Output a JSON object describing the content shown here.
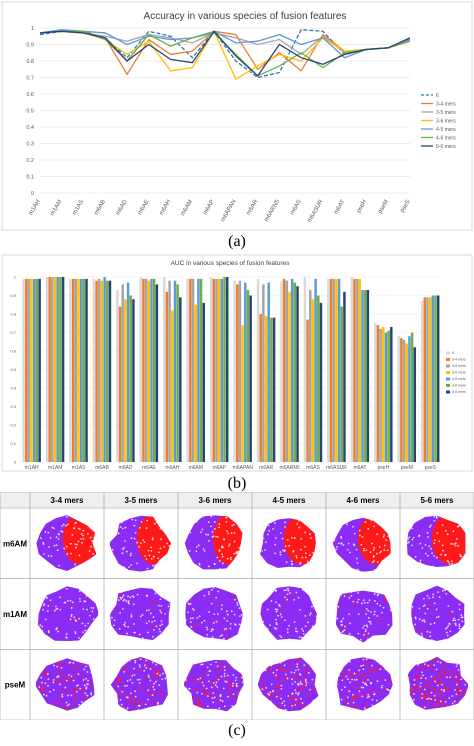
{
  "captions": {
    "a": "(a)",
    "b": "(b)",
    "c": "(c)"
  },
  "chart_data": [
    {
      "type": "line",
      "title": "Accuracy in various species of fusion features",
      "categories": [
        "m1AH",
        "m1AM",
        "m1AS",
        "m6AB",
        "m6AD",
        "m6AE",
        "m6AH",
        "m6AM",
        "m6AP",
        "m6APAN",
        "m6AR",
        "m6ARN5",
        "m6AS",
        "m6ASUR",
        "m6AT",
        "pseH",
        "pseM",
        "pseS"
      ],
      "y_ticks": [
        "1",
        "0.9",
        "0.8",
        "0.7",
        "0.6",
        "0.5",
        "0.4",
        "0.3",
        "0.2",
        "0.1",
        "0"
      ],
      "ylim": [
        0,
        1
      ],
      "legend_position": "right",
      "series": [
        {
          "name": "6",
          "color": "#2e75b6",
          "dash": true,
          "values": [
            0.96,
            0.98,
            0.98,
            0.94,
            0.82,
            0.98,
            0.95,
            0.82,
            0.98,
            0.8,
            0.7,
            0.73,
            0.99,
            0.98,
            0.84,
            0.87,
            0.88,
            0.93
          ]
        },
        {
          "name": "3-4 mers",
          "color": "#ed7d31",
          "values": [
            0.97,
            0.98,
            0.97,
            0.94,
            0.72,
            0.93,
            0.84,
            0.86,
            0.98,
            0.96,
            0.75,
            0.85,
            0.74,
            0.96,
            0.86,
            0.87,
            0.88,
            0.92
          ]
        },
        {
          "name": "3-5 mers",
          "color": "#a5a5a5",
          "values": [
            0.97,
            0.98,
            0.97,
            0.95,
            0.92,
            0.96,
            0.94,
            0.91,
            0.97,
            0.94,
            0.9,
            0.93,
            0.84,
            0.95,
            0.85,
            0.87,
            0.88,
            0.93
          ]
        },
        {
          "name": "3-6 mers",
          "color": "#ffc000",
          "values": [
            0.97,
            0.98,
            0.97,
            0.93,
            0.84,
            0.92,
            0.74,
            0.76,
            0.98,
            0.69,
            0.77,
            0.84,
            0.8,
            0.94,
            0.86,
            0.87,
            0.88,
            0.93
          ]
        },
        {
          "name": "4-5 mers",
          "color": "#5b9bd5",
          "values": [
            0.97,
            0.99,
            0.98,
            0.97,
            0.9,
            0.95,
            0.93,
            0.94,
            0.98,
            0.91,
            0.92,
            0.96,
            0.9,
            0.94,
            0.82,
            0.87,
            0.88,
            0.93
          ]
        },
        {
          "name": "4-6 mers",
          "color": "#70ad47",
          "values": [
            0.97,
            0.98,
            0.98,
            0.93,
            0.8,
            0.96,
            0.89,
            0.94,
            0.97,
            0.84,
            0.71,
            0.77,
            0.85,
            0.76,
            0.85,
            0.87,
            0.88,
            0.92
          ]
        },
        {
          "name": "5-6 mers",
          "color": "#264478",
          "values": [
            0.97,
            0.98,
            0.97,
            0.94,
            0.8,
            0.9,
            0.81,
            0.79,
            0.98,
            0.83,
            0.71,
            0.9,
            0.82,
            0.78,
            0.84,
            0.87,
            0.88,
            0.94
          ]
        }
      ]
    },
    {
      "type": "bar",
      "title": "AUC in various species of fusion features",
      "categories": [
        "m1AH",
        "m1AM",
        "m1AS",
        "m6AB",
        "m6AD",
        "m6AE",
        "m6AH",
        "m6AM",
        "m6AP",
        "m6APAN",
        "m6AR",
        "m6ARN5",
        "m6AS",
        "m6ASUR",
        "m6AT",
        "pseH",
        "pseM",
        "pseS"
      ],
      "y_ticks": [
        "1",
        "0.9",
        "0.8",
        "0.7",
        "0.6",
        "0.5",
        "0.4",
        "0.3",
        "0.2",
        "0.1",
        "0"
      ],
      "ylim": [
        0,
        1
      ],
      "legend_position": "right",
      "series": [
        {
          "name": "6",
          "color": "#d9d9d9",
          "values": [
            0.99,
            1.0,
            0.99,
            0.99,
            0.93,
            1.0,
            1.0,
            0.99,
            1.0,
            0.98,
            0.99,
            0.98,
            1.0,
            0.99,
            1.0,
            0.75,
            0.68,
            0.87
          ]
        },
        {
          "name": "3-4 mers",
          "color": "#ed7d31",
          "values": [
            0.99,
            1.0,
            0.99,
            0.98,
            0.84,
            0.99,
            0.92,
            0.99,
            0.99,
            0.96,
            0.8,
            0.99,
            0.77,
            0.99,
            0.99,
            0.74,
            0.67,
            0.89
          ]
        },
        {
          "name": "3-5 mers",
          "color": "#a5a5a5",
          "values": [
            0.99,
            1.0,
            0.99,
            0.99,
            0.96,
            0.99,
            0.98,
            0.99,
            0.99,
            0.98,
            0.96,
            0.98,
            0.93,
            0.99,
            0.99,
            0.72,
            0.66,
            0.89
          ]
        },
        {
          "name": "3-6 mers",
          "color": "#ffc000",
          "values": [
            0.99,
            1.0,
            0.99,
            0.98,
            0.88,
            0.98,
            0.82,
            0.85,
            0.99,
            0.74,
            0.79,
            0.92,
            0.88,
            0.99,
            0.99,
            0.73,
            0.64,
            0.89
          ]
        },
        {
          "name": "4-5 mers",
          "color": "#5b9bd5",
          "values": [
            0.99,
            1.0,
            0.99,
            1.0,
            0.97,
            0.99,
            0.98,
            0.99,
            0.99,
            0.97,
            0.97,
            0.99,
            0.99,
            0.99,
            0.93,
            0.7,
            0.68,
            0.9
          ]
        },
        {
          "name": "4-6 mers",
          "color": "#70ad47",
          "values": [
            0.99,
            1.0,
            0.99,
            0.98,
            0.9,
            0.99,
            0.96,
            0.99,
            1.0,
            0.93,
            0.78,
            0.97,
            0.9,
            0.84,
            0.93,
            0.71,
            0.7,
            0.9
          ]
        },
        {
          "name": "5-6 mers",
          "color": "#264478",
          "values": [
            0.99,
            1.0,
            0.99,
            0.98,
            0.88,
            0.96,
            0.89,
            0.86,
            1.0,
            0.9,
            0.78,
            0.95,
            0.86,
            0.92,
            0.93,
            0.73,
            0.62,
            0.9
          ]
        }
      ]
    }
  ],
  "tsne_grid": {
    "columns": [
      "3-4 mers",
      "3-5 mers",
      "3-6 mers",
      "4-5 mers",
      "4-6 mers",
      "5-6 mers"
    ],
    "rows": [
      "m6AM",
      "m1AM",
      "pseM"
    ],
    "colors": {
      "negative": "#8b2cf5",
      "positive": "#ff1a1a",
      "header_bg": "#eeeeee",
      "border": "#999999"
    },
    "red_fraction": [
      [
        0.45,
        0.45,
        0.35,
        0.5,
        0.5,
        0.5
      ],
      [
        0.03,
        0.03,
        0.03,
        0.03,
        0.03,
        0.03
      ],
      [
        0.25,
        0.3,
        0.3,
        0.35,
        0.3,
        0.45
      ]
    ]
  }
}
